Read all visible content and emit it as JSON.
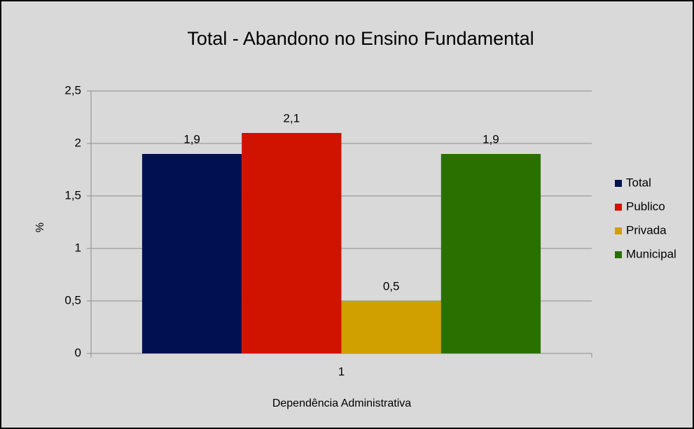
{
  "chart_data": {
    "type": "bar",
    "title": "Total - Abandono no Ensino Fundamental",
    "x_label": "Dependência Administrativa",
    "y_label": "%",
    "categories": [
      "1"
    ],
    "series": [
      {
        "name": "Total",
        "color": "#001050",
        "values": [
          1.9
        ],
        "value_labels": [
          "1,9"
        ]
      },
      {
        "name": "Publico",
        "color": "#d01200",
        "values": [
          2.1
        ],
        "value_labels": [
          "2,1"
        ]
      },
      {
        "name": "Privada",
        "color": "#d0a000",
        "values": [
          0.5
        ],
        "value_labels": [
          "0,5"
        ]
      },
      {
        "name": "Municipal",
        "color": "#2a7000",
        "values": [
          1.9
        ],
        "value_labels": [
          "1,9"
        ]
      }
    ],
    "ylim": [
      0,
      2.5
    ],
    "yticks": [
      0,
      {
        "value": 0.5,
        "label": "0,5"
      },
      1,
      {
        "value": 1.5,
        "label": "1,5"
      },
      2,
      {
        "value": 2.5,
        "label": "2,5"
      }
    ],
    "grid": true,
    "legend": "right"
  }
}
